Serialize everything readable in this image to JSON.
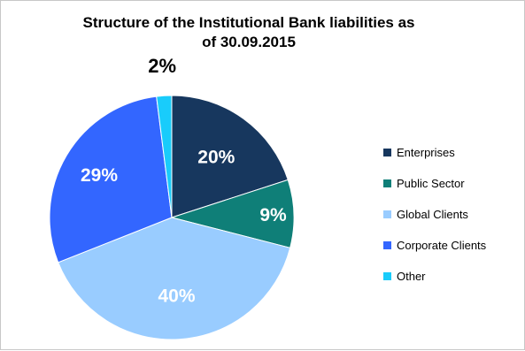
{
  "chart_data": {
    "type": "pie",
    "title_lines": [
      "Structure of the Institutional Bank liabilities as",
      "of 30.09.2015"
    ],
    "slices": [
      {
        "name": "Enterprises",
        "value": 20,
        "label": "20%",
        "color": "#17375e"
      },
      {
        "name": "Public Sector",
        "value": 9,
        "label": "9%",
        "color": "#0f7f78"
      },
      {
        "name": "Global Clients",
        "value": 40,
        "label": "40%",
        "color": "#99ccff"
      },
      {
        "name": "Corporate Clients",
        "value": 29,
        "label": "29%",
        "color": "#3366ff"
      },
      {
        "name": "Other",
        "value": 2,
        "label": "2%",
        "color": "#19ccfb"
      }
    ],
    "start": "top, clockwise",
    "legend_position": "right"
  }
}
